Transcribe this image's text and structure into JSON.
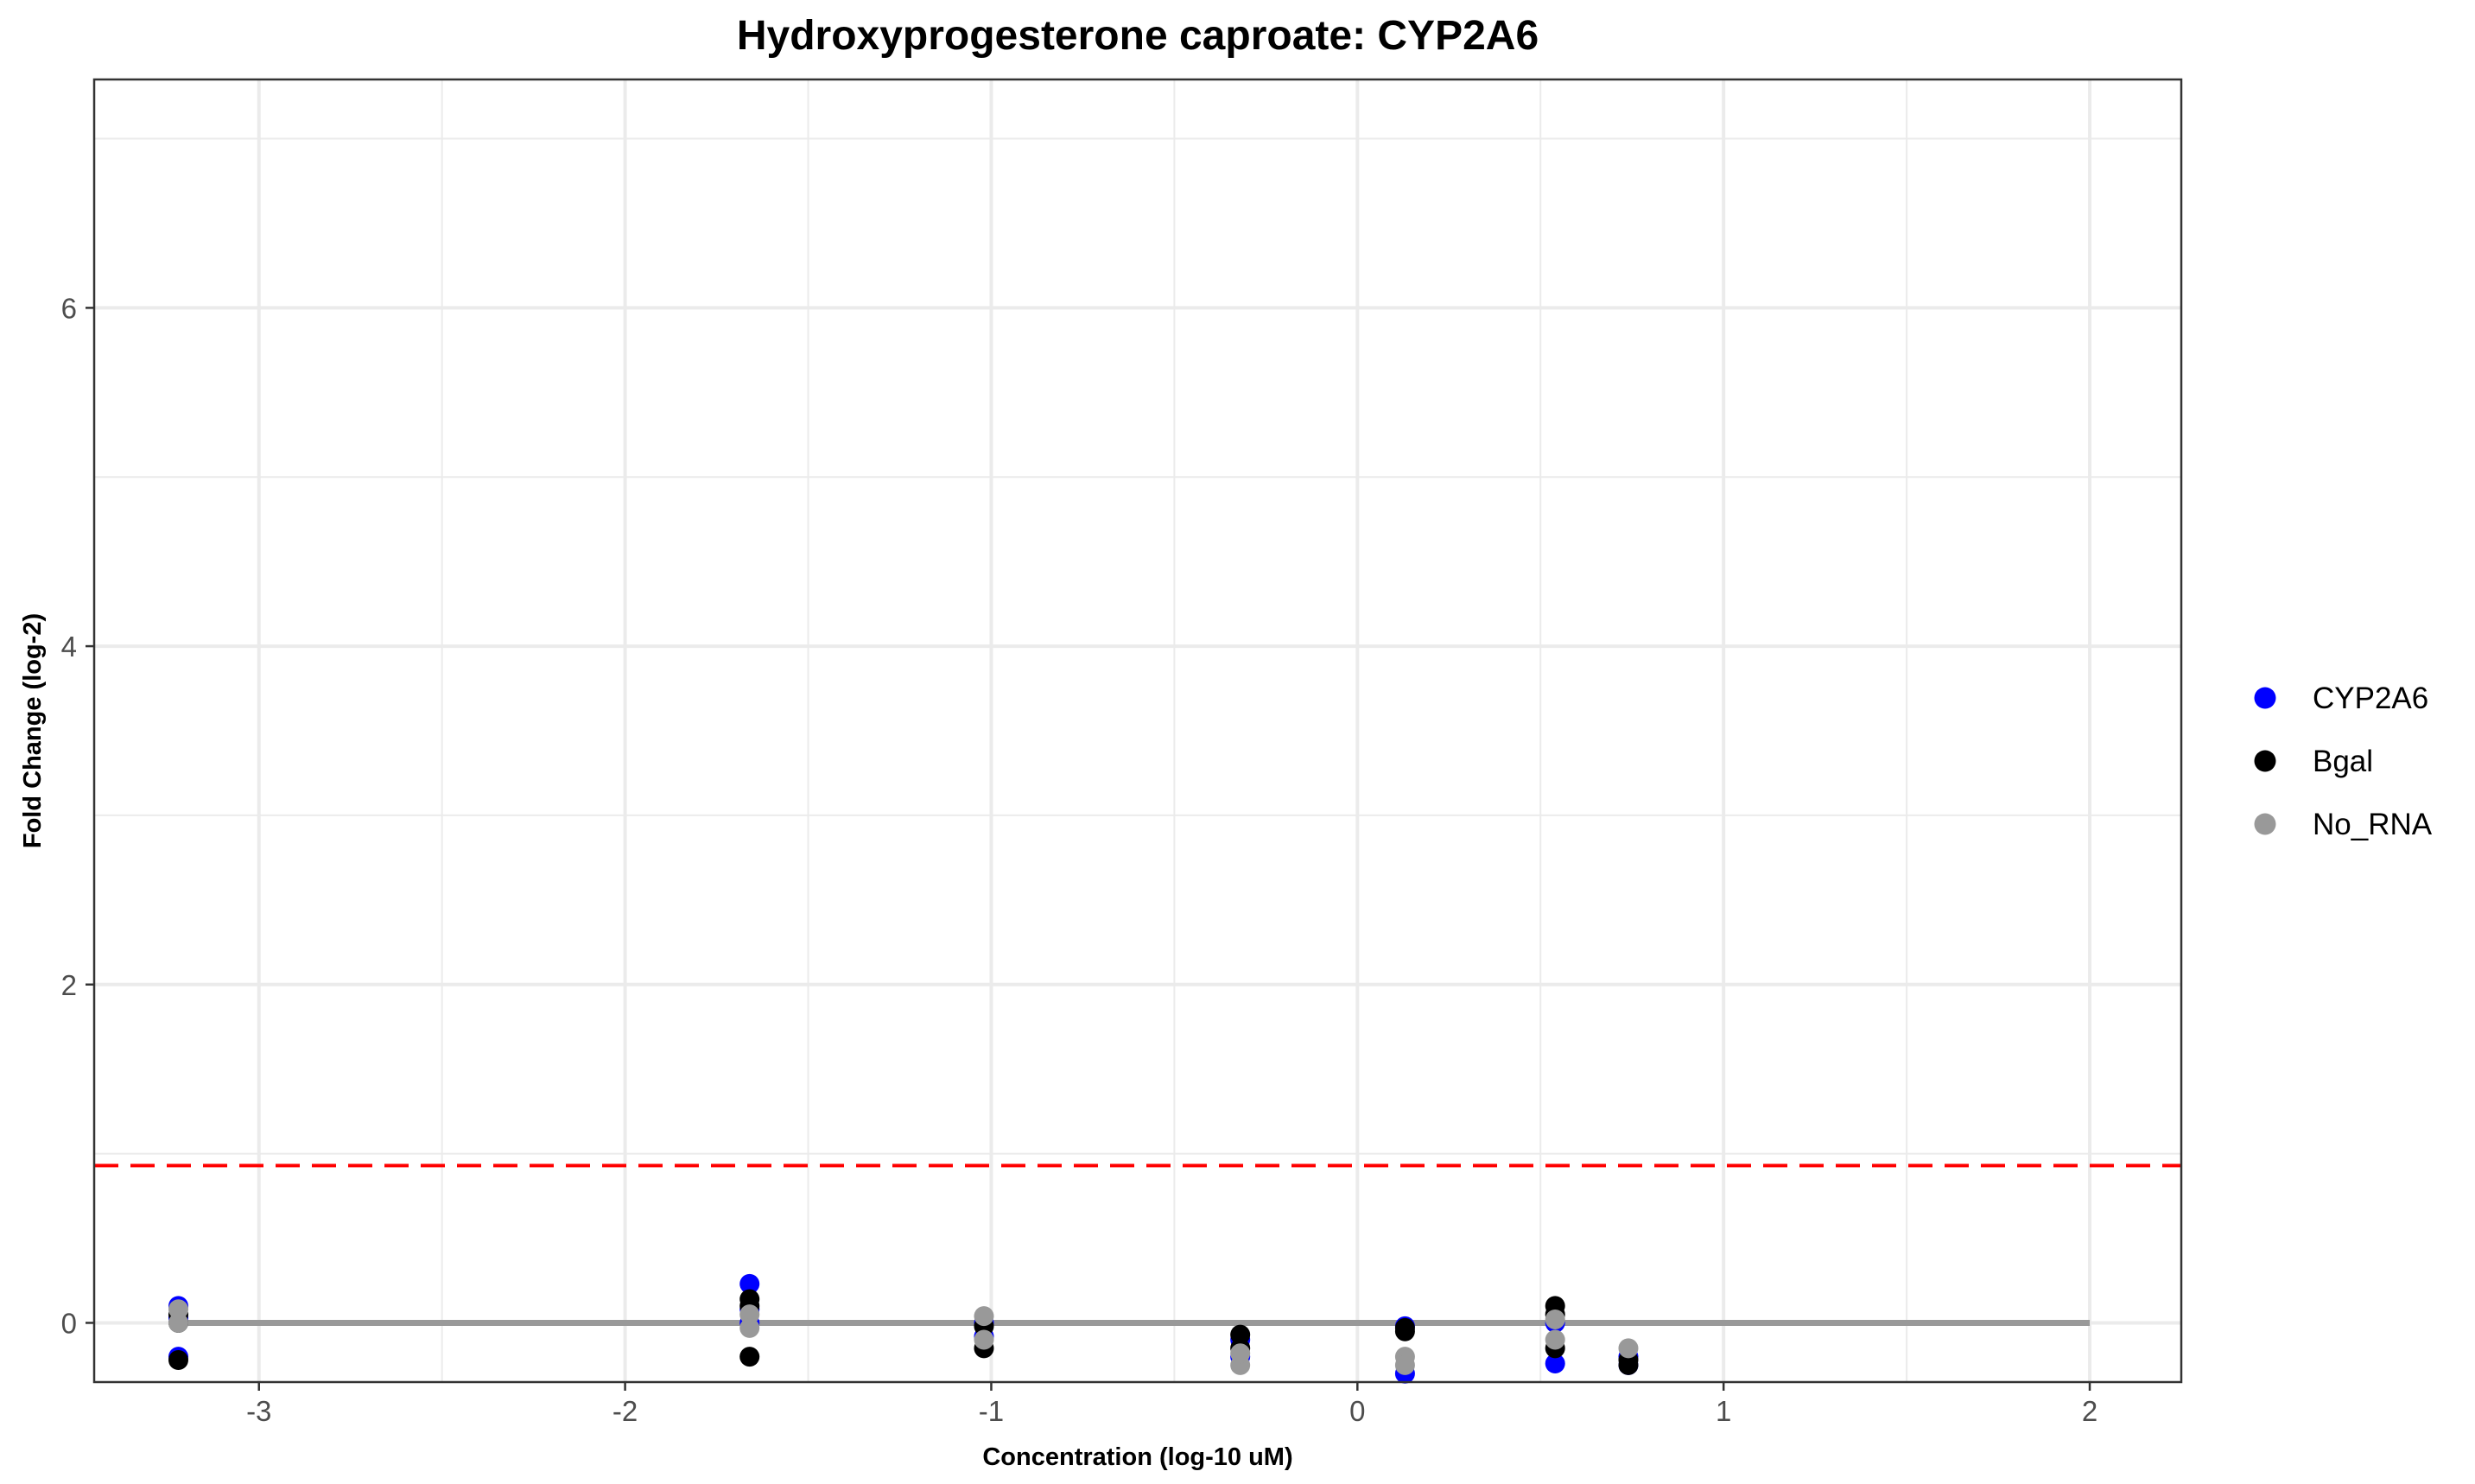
{
  "chart_data": {
    "type": "scatter",
    "title": "Hydroxyprogesterone caproate: CYP2A6",
    "xlabel": "Concentration (log-10 uM)",
    "ylabel": "Fold Change (log-2)",
    "xlim": [
      -3.45,
      2.25
    ],
    "ylim": [
      -0.35,
      7.35
    ],
    "x_ticks": [
      -3,
      -2,
      -1,
      0,
      1,
      2
    ],
    "y_ticks": [
      0,
      2,
      4,
      6
    ],
    "grid": true,
    "legend_position": "right",
    "threshold_line": {
      "y": 0.93,
      "color": "#FF0000",
      "style": "dashed"
    },
    "fit_line": {
      "x": [
        -3.22,
        2.0
      ],
      "y": [
        0.0,
        0.0
      ],
      "color": "#999999"
    },
    "series": [
      {
        "name": "CYP2A6",
        "color": "#0000FF",
        "points": [
          [
            -3.22,
            0.1
          ],
          [
            -3.22,
            -0.2
          ],
          [
            -3.22,
            0.03
          ],
          [
            -1.66,
            0.23
          ],
          [
            -1.66,
            0.08
          ],
          [
            -1.66,
            0.0
          ],
          [
            -1.02,
            0.0
          ],
          [
            -1.02,
            -0.08
          ],
          [
            -0.32,
            -0.1
          ],
          [
            -0.32,
            -0.2
          ],
          [
            0.13,
            -0.02
          ],
          [
            0.13,
            -0.3
          ],
          [
            0.54,
            0.0
          ],
          [
            0.54,
            -0.24
          ],
          [
            0.74,
            -0.25
          ],
          [
            0.74,
            -0.2
          ]
        ]
      },
      {
        "name": "Bgal",
        "color": "#000000",
        "points": [
          [
            -3.22,
            -0.22
          ],
          [
            -3.22,
            0.0
          ],
          [
            -3.22,
            0.05
          ],
          [
            -1.66,
            -0.2
          ],
          [
            -1.66,
            0.14
          ],
          [
            -1.66,
            0.1
          ],
          [
            -1.02,
            -0.15
          ],
          [
            -1.02,
            -0.02
          ],
          [
            -0.32,
            -0.07
          ],
          [
            -0.32,
            -0.15
          ],
          [
            0.13,
            -0.05
          ],
          [
            0.13,
            -0.03
          ],
          [
            0.54,
            0.1
          ],
          [
            0.54,
            0.05
          ],
          [
            0.54,
            -0.15
          ],
          [
            0.74,
            -0.22
          ],
          [
            0.74,
            -0.25
          ]
        ]
      },
      {
        "name": "No_RNA",
        "color": "#999999",
        "points": [
          [
            -3.22,
            0.0
          ],
          [
            -3.22,
            0.08
          ],
          [
            -1.66,
            0.05
          ],
          [
            -1.66,
            -0.03
          ],
          [
            -1.02,
            0.04
          ],
          [
            -1.02,
            -0.1
          ],
          [
            -0.32,
            -0.25
          ],
          [
            -0.32,
            -0.18
          ],
          [
            0.13,
            -0.2
          ],
          [
            0.13,
            -0.25
          ],
          [
            0.54,
            -0.1
          ],
          [
            0.54,
            0.02
          ],
          [
            0.74,
            -0.15
          ]
        ]
      }
    ]
  }
}
